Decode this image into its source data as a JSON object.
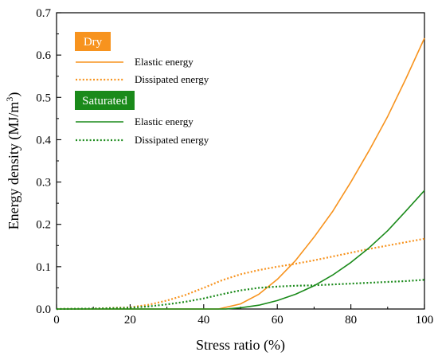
{
  "chart_data": {
    "type": "line",
    "xlabel": "Stress ratio (%)",
    "ylabel_main": "Energy density (MJ/m",
    "ylabel_sup": "3",
    "ylabel_close": ")",
    "xlim": [
      0,
      100
    ],
    "ylim": [
      0,
      0.7
    ],
    "xticks": [
      0,
      20,
      40,
      60,
      80,
      100
    ],
    "yticks": [
      0.0,
      0.1,
      0.2,
      0.3,
      0.4,
      0.5,
      0.6,
      0.7
    ],
    "xtick_labels": [
      "0",
      "20",
      "40",
      "60",
      "80",
      "100"
    ],
    "ytick_labels": [
      "0.0",
      "0.1",
      "0.2",
      "0.3",
      "0.4",
      "0.5",
      "0.6",
      "0.7"
    ],
    "grid": false,
    "legend_position": "top-left",
    "groups": [
      {
        "name": "Dry",
        "color": "#f7931e",
        "series": [
          {
            "name": "Elastic energy",
            "style": "solid",
            "x": [
              0,
              40,
              44,
              50,
              55,
              60,
              65,
              70,
              75,
              80,
              85,
              90,
              95,
              100
            ],
            "y": [
              0,
              0,
              0.0,
              0.012,
              0.035,
              0.07,
              0.115,
              0.17,
              0.23,
              0.3,
              0.375,
              0.455,
              0.545,
              0.64
            ]
          },
          {
            "name": "Dissipated energy",
            "style": "dotted",
            "x": [
              0,
              10,
              20,
              25,
              30,
              35,
              40,
              45,
              50,
              55,
              60,
              65,
              70,
              75,
              80,
              85,
              90,
              95,
              100
            ],
            "y": [
              0,
              0.001,
              0.004,
              0.01,
              0.02,
              0.033,
              0.05,
              0.068,
              0.082,
              0.092,
              0.1,
              0.107,
              0.115,
              0.124,
              0.133,
              0.142,
              0.15,
              0.158,
              0.166
            ]
          }
        ]
      },
      {
        "name": "Saturated",
        "color": "#1a8a1a",
        "series": [
          {
            "name": "Elastic energy",
            "style": "solid",
            "x": [
              0,
              46,
              50,
              55,
              60,
              65,
              70,
              75,
              80,
              85,
              90,
              95,
              100
            ],
            "y": [
              0,
              0,
              0.003,
              0.009,
              0.02,
              0.035,
              0.055,
              0.08,
              0.11,
              0.145,
              0.185,
              0.232,
              0.28
            ]
          },
          {
            "name": "Dissipated energy",
            "style": "dotted",
            "x": [
              0,
              10,
              20,
              25,
              30,
              35,
              40,
              45,
              50,
              55,
              60,
              65,
              70,
              75,
              80,
              85,
              90,
              95,
              100
            ],
            "y": [
              0,
              0.001,
              0.003,
              0.006,
              0.011,
              0.017,
              0.025,
              0.035,
              0.044,
              0.05,
              0.053,
              0.055,
              0.056,
              0.058,
              0.06,
              0.062,
              0.064,
              0.066,
              0.069
            ]
          }
        ]
      }
    ]
  }
}
